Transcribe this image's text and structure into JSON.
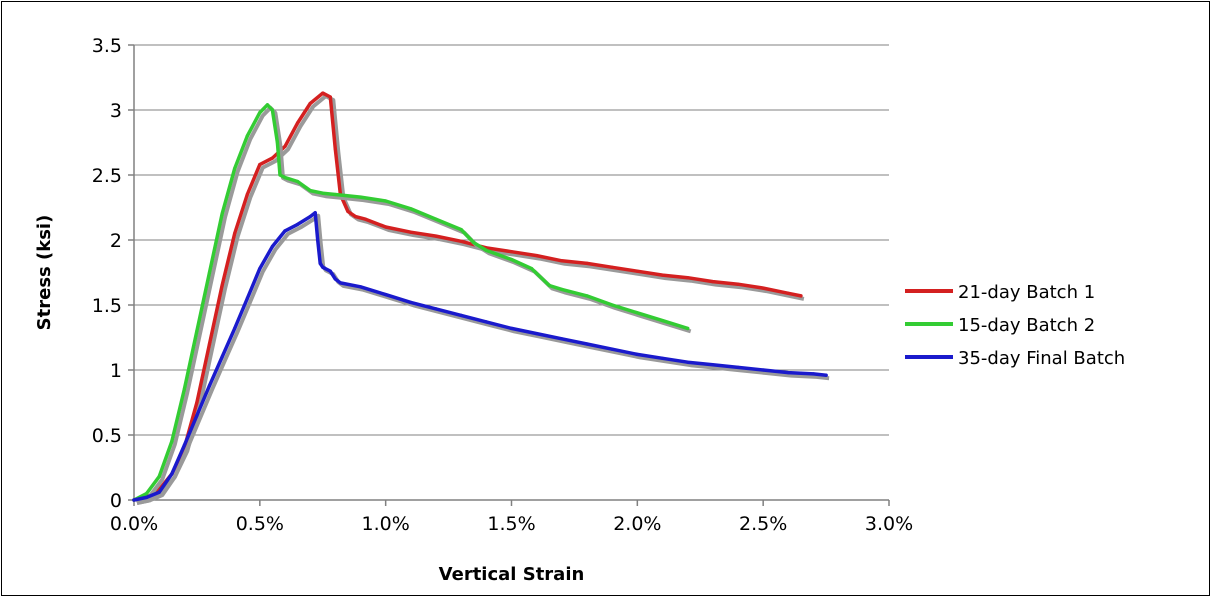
{
  "chart_data": {
    "type": "line",
    "xlabel": "Vertical Strain",
    "ylabel": "Stress (ksi)",
    "xlim": [
      0,
      0.03
    ],
    "ylim": [
      0,
      3.5
    ],
    "x_ticks": [
      "0.0%",
      "0.5%",
      "1.0%",
      "1.5%",
      "2.0%",
      "2.5%",
      "3.0%"
    ],
    "y_ticks": [
      "0",
      "0.5",
      "1",
      "1.5",
      "2",
      "2.5",
      "3",
      "3.5"
    ],
    "grid": "horizontal",
    "legend_position": "right",
    "series": [
      {
        "name": "21-day Batch 1",
        "color": "#d42020",
        "points": [
          [
            0.0,
            0.0
          ],
          [
            0.0005,
            0.02
          ],
          [
            0.001,
            0.08
          ],
          [
            0.0015,
            0.2
          ],
          [
            0.002,
            0.4
          ],
          [
            0.0025,
            0.75
          ],
          [
            0.003,
            1.2
          ],
          [
            0.0035,
            1.65
          ],
          [
            0.004,
            2.05
          ],
          [
            0.0045,
            2.35
          ],
          [
            0.005,
            2.58
          ],
          [
            0.0055,
            2.63
          ],
          [
            0.006,
            2.72
          ],
          [
            0.0065,
            2.9
          ],
          [
            0.007,
            3.05
          ],
          [
            0.0075,
            3.13
          ],
          [
            0.0078,
            3.1
          ],
          [
            0.008,
            2.7
          ],
          [
            0.0082,
            2.35
          ],
          [
            0.0085,
            2.22
          ],
          [
            0.0088,
            2.18
          ],
          [
            0.0092,
            2.16
          ],
          [
            0.01,
            2.1
          ],
          [
            0.011,
            2.06
          ],
          [
            0.012,
            2.03
          ],
          [
            0.013,
            1.99
          ],
          [
            0.014,
            1.94
          ],
          [
            0.015,
            1.91
          ],
          [
            0.016,
            1.88
          ],
          [
            0.017,
            1.84
          ],
          [
            0.018,
            1.82
          ],
          [
            0.019,
            1.79
          ],
          [
            0.02,
            1.76
          ],
          [
            0.021,
            1.73
          ],
          [
            0.022,
            1.71
          ],
          [
            0.023,
            1.68
          ],
          [
            0.024,
            1.66
          ],
          [
            0.025,
            1.63
          ],
          [
            0.026,
            1.59
          ],
          [
            0.0265,
            1.57
          ]
        ]
      },
      {
        "name": "15-day Batch 2",
        "color": "#33cc33",
        "points": [
          [
            0.0,
            0.0
          ],
          [
            0.0005,
            0.05
          ],
          [
            0.001,
            0.18
          ],
          [
            0.0015,
            0.45
          ],
          [
            0.002,
            0.85
          ],
          [
            0.0025,
            1.3
          ],
          [
            0.003,
            1.75
          ],
          [
            0.0035,
            2.2
          ],
          [
            0.004,
            2.55
          ],
          [
            0.0045,
            2.8
          ],
          [
            0.005,
            2.98
          ],
          [
            0.0053,
            3.04
          ],
          [
            0.0055,
            3.0
          ],
          [
            0.0057,
            2.75
          ],
          [
            0.0058,
            2.5
          ],
          [
            0.006,
            2.48
          ],
          [
            0.0065,
            2.45
          ],
          [
            0.007,
            2.38
          ],
          [
            0.0075,
            2.36
          ],
          [
            0.008,
            2.35
          ],
          [
            0.009,
            2.33
          ],
          [
            0.01,
            2.3
          ],
          [
            0.011,
            2.24
          ],
          [
            0.012,
            2.16
          ],
          [
            0.013,
            2.08
          ],
          [
            0.0135,
            1.98
          ],
          [
            0.014,
            1.92
          ],
          [
            0.015,
            1.85
          ],
          [
            0.0158,
            1.78
          ],
          [
            0.0165,
            1.65
          ],
          [
            0.017,
            1.62
          ],
          [
            0.018,
            1.57
          ],
          [
            0.019,
            1.5
          ],
          [
            0.02,
            1.44
          ],
          [
            0.021,
            1.38
          ],
          [
            0.022,
            1.32
          ]
        ]
      },
      {
        "name": "35-day Final Batch",
        "color": "#1a1acc",
        "points": [
          [
            0.0,
            0.0
          ],
          [
            0.0005,
            0.02
          ],
          [
            0.001,
            0.06
          ],
          [
            0.0015,
            0.2
          ],
          [
            0.002,
            0.42
          ],
          [
            0.0025,
            0.65
          ],
          [
            0.003,
            0.88
          ],
          [
            0.0035,
            1.1
          ],
          [
            0.004,
            1.32
          ],
          [
            0.0045,
            1.55
          ],
          [
            0.005,
            1.78
          ],
          [
            0.0055,
            1.95
          ],
          [
            0.006,
            2.07
          ],
          [
            0.0065,
            2.12
          ],
          [
            0.007,
            2.18
          ],
          [
            0.0072,
            2.21
          ],
          [
            0.0073,
            2.0
          ],
          [
            0.0074,
            1.82
          ],
          [
            0.0075,
            1.79
          ],
          [
            0.0078,
            1.76
          ],
          [
            0.008,
            1.7
          ],
          [
            0.0082,
            1.67
          ],
          [
            0.009,
            1.64
          ],
          [
            0.01,
            1.58
          ],
          [
            0.011,
            1.52
          ],
          [
            0.012,
            1.47
          ],
          [
            0.013,
            1.42
          ],
          [
            0.014,
            1.37
          ],
          [
            0.015,
            1.32
          ],
          [
            0.016,
            1.28
          ],
          [
            0.017,
            1.24
          ],
          [
            0.018,
            1.2
          ],
          [
            0.019,
            1.16
          ],
          [
            0.02,
            1.12
          ],
          [
            0.021,
            1.09
          ],
          [
            0.022,
            1.06
          ],
          [
            0.023,
            1.04
          ],
          [
            0.024,
            1.02
          ],
          [
            0.025,
            1.0
          ],
          [
            0.026,
            0.98
          ],
          [
            0.027,
            0.97
          ],
          [
            0.0275,
            0.96
          ]
        ]
      }
    ]
  }
}
